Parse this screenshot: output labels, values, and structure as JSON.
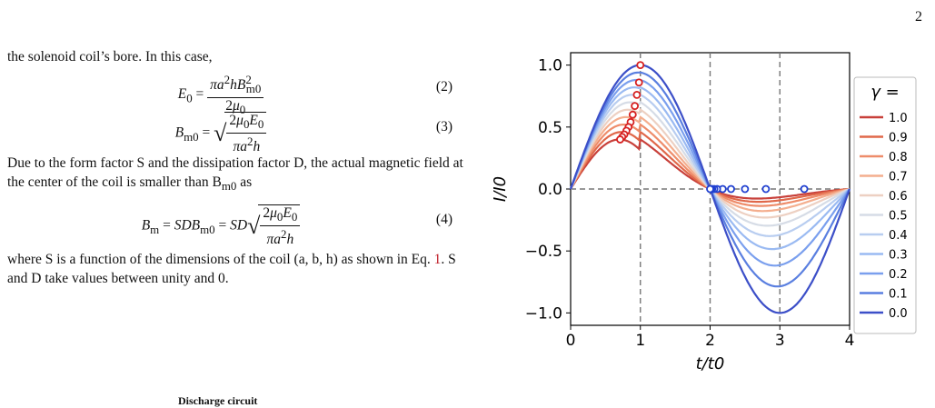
{
  "page": {
    "number": "2",
    "cut_heading": "Discharge circuit"
  },
  "text": {
    "para1": "the solenoid coil’s bore. In this case,",
    "para2": "Due to the form factor S and the dissipation factor D, the actual magnetic field at the center of the coil is smaller than B",
    "para2_sub": "m0",
    "para2_end": " as",
    "para3_a": "where S is a function of the dimensions of the coil (a, b, h) as shown in Eq. ",
    "para3_ref": "1",
    "para3_b": ". S and D take values between unity and 0."
  },
  "equations": [
    {
      "number": "(2)"
    },
    {
      "number": "(3)"
    },
    {
      "number": "(4)"
    }
  ],
  "chart_data": {
    "type": "line",
    "xlabel": "t/t0",
    "ylabel": "I/I0",
    "xlim": [
      0,
      4
    ],
    "ylim": [
      -1.1,
      1.1
    ],
    "xticks": [
      "0",
      "1",
      "2",
      "3",
      "4"
    ],
    "yticks": [
      "−1.0",
      "−0.5",
      "0.0",
      "0.5",
      "1.0"
    ],
    "legend_title": "γ =",
    "legend_position": "right",
    "series": [
      {
        "name": "1.0",
        "gamma": 1.0,
        "color": "#c8403a"
      },
      {
        "name": "0.9",
        "gamma": 0.9,
        "color": "#e0684a"
      },
      {
        "name": "0.8",
        "gamma": 0.8,
        "color": "#ee8c6a"
      },
      {
        "name": "0.7",
        "gamma": 0.7,
        "color": "#f4ae8e"
      },
      {
        "name": "0.6",
        "gamma": 0.6,
        "color": "#edd0c2"
      },
      {
        "name": "0.5",
        "gamma": 0.5,
        "color": "#d6dce6"
      },
      {
        "name": "0.4",
        "gamma": 0.4,
        "color": "#b8cdf0"
      },
      {
        "name": "0.3",
        "gamma": 0.3,
        "color": "#9abaf2"
      },
      {
        "name": "0.2",
        "gamma": 0.2,
        "color": "#7a9fee"
      },
      {
        "name": "0.1",
        "gamma": 0.1,
        "color": "#5a7fe0"
      },
      {
        "name": "0.0",
        "gamma": 0.0,
        "color": "#3c4fc8"
      }
    ],
    "peak_markers": [
      {
        "x": 1.0,
        "y": 1.0
      },
      {
        "x": 0.98,
        "y": 0.86
      },
      {
        "x": 0.95,
        "y": 0.76
      },
      {
        "x": 0.92,
        "y": 0.67
      },
      {
        "x": 0.89,
        "y": 0.6
      },
      {
        "x": 0.86,
        "y": 0.54
      },
      {
        "x": 0.83,
        "y": 0.5
      },
      {
        "x": 0.8,
        "y": 0.47
      },
      {
        "x": 0.77,
        "y": 0.44
      },
      {
        "x": 0.74,
        "y": 0.42
      },
      {
        "x": 0.71,
        "y": 0.4
      }
    ],
    "zero_markers": [
      {
        "x": 3.35,
        "y": 0
      },
      {
        "x": 2.8,
        "y": 0
      },
      {
        "x": 2.5,
        "y": 0
      },
      {
        "x": 2.3,
        "y": 0
      },
      {
        "x": 2.18,
        "y": 0
      },
      {
        "x": 2.1,
        "y": 0
      },
      {
        "x": 2.06,
        "y": 0
      },
      {
        "x": 2.03,
        "y": 0
      },
      {
        "x": 2.01,
        "y": 0
      },
      {
        "x": 2.0,
        "y": 0
      }
    ],
    "vlines": [
      1,
      2,
      3
    ],
    "hline": 0
  }
}
